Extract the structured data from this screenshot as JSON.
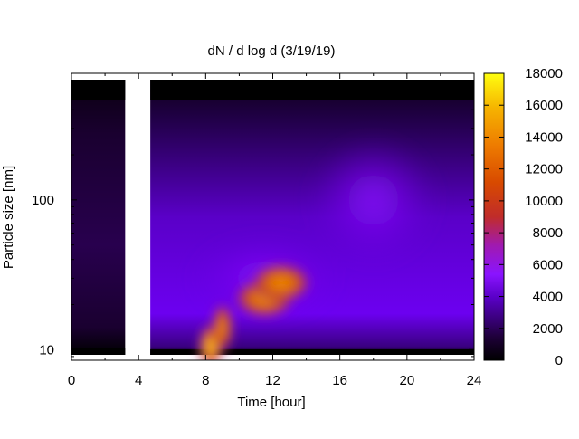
{
  "chart_data": {
    "type": "heatmap",
    "title": "dN / d log d (3/19/19)",
    "xlabel": "Time [hour]",
    "ylabel": "Particle size [nm]",
    "xlim": [
      0,
      24
    ],
    "ylim": [
      8.5,
      700
    ],
    "yscale": "log",
    "x_ticks": [
      0,
      4,
      8,
      12,
      16,
      20,
      24
    ],
    "y_ticks": [
      10,
      100
    ],
    "colorbar": {
      "range": [
        0,
        18000
      ],
      "ticks": [
        0,
        2000,
        4000,
        6000,
        8000,
        10000,
        12000,
        14000,
        16000,
        18000
      ],
      "palette": [
        "#000000",
        "#4b0082",
        "#8a14ff",
        "#9a1ac8",
        "#c02b1e",
        "#e65a00",
        "#f08a00",
        "#f7c500",
        "#ffff10"
      ]
    },
    "data_gap_hours": [
      3.2,
      4.7
    ],
    "features": [
      {
        "time_hour": 8.3,
        "size_nm": 10.5,
        "value": 17500
      },
      {
        "time_hour": 9.0,
        "size_nm": 14,
        "value": 14000
      },
      {
        "time_hour": 11.5,
        "size_nm": 22,
        "value": 13000
      },
      {
        "time_hour": 12.5,
        "size_nm": 28,
        "value": 12500
      },
      {
        "time_hour": 18.0,
        "size_nm": 100,
        "value": 4000
      },
      {
        "time_hour": 0.5,
        "size_nm": 100,
        "value": 800
      }
    ]
  }
}
